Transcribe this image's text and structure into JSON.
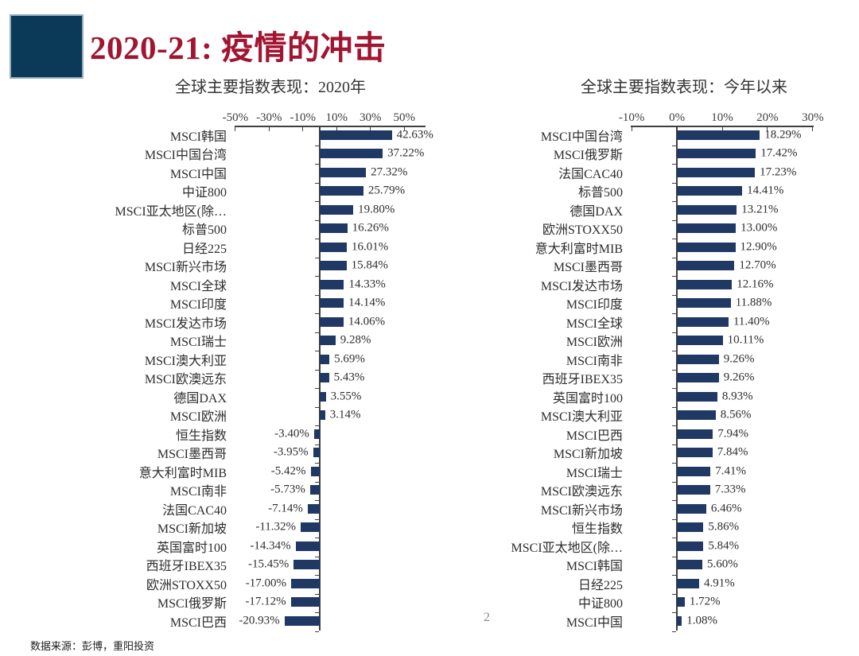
{
  "slide": {
    "title": "2020-21: 疫情的冲击",
    "page_number": "2",
    "source_note": "数据来源：彭博，重阳投资"
  },
  "colors": {
    "bar": "#1F3864",
    "title_red": "#A11531",
    "accent_square": "#0A3A57",
    "axis": "#3F3F3F"
  },
  "chart_data": [
    {
      "type": "bar",
      "orientation": "horizontal",
      "title": "全球主要指数表现：2020年",
      "unit": "%",
      "axis": {
        "min": -50.4,
        "max": 62.6,
        "ticks": [
          -50,
          -30,
          -10,
          10,
          30,
          50
        ],
        "tick_labels": [
          "-50%",
          "-30%",
          "-10%",
          "10%",
          "30%",
          "50%"
        ],
        "grid": false
      },
      "categories": [
        "MSCI韩国",
        "MSCI中国台湾",
        "MSCI中国",
        "中证800",
        "MSCI亚太地区(除…",
        "标普500",
        "日经225",
        "MSCI新兴市场",
        "MSCI全球",
        "MSCI印度",
        "MSCI发达市场",
        "MSCI瑞士",
        "MSCI澳大利亚",
        "MSCI欧澳远东",
        "德国DAX",
        "MSCI欧洲",
        "恒生指数",
        "MSCI墨西哥",
        "意大利富时MIB",
        "MSCI南非",
        "法国CAC40",
        "MSCI新加坡",
        "英国富时100",
        "西班牙IBEX35",
        "欧洲STOXX50",
        "MSCI俄罗斯",
        "MSCI巴西"
      ],
      "values": [
        42.63,
        37.22,
        27.32,
        25.79,
        19.8,
        16.26,
        16.01,
        15.84,
        14.33,
        14.14,
        14.06,
        9.28,
        5.69,
        5.43,
        3.55,
        3.14,
        -3.4,
        -3.95,
        -5.42,
        -5.73,
        -7.14,
        -11.32,
        -14.34,
        -15.45,
        -17.0,
        -17.12,
        -20.93
      ],
      "value_labels": [
        "42.63%",
        "37.22%",
        "27.32%",
        "25.79%",
        "19.80%",
        "16.26%",
        "16.01%",
        "15.84%",
        "14.33%",
        "14.14%",
        "14.06%",
        "9.28%",
        "5.69%",
        "5.43%",
        "3.55%",
        "3.14%",
        "-3.40%",
        "-3.95%",
        "-5.42%",
        "-5.73%",
        "-7.14%",
        "-11.32%",
        "-14.34%",
        "-15.45%",
        "-17.00%",
        "-17.12%",
        "-20.93%"
      ]
    },
    {
      "type": "bar",
      "orientation": "horizontal",
      "title": "全球主要指数表现：今年以来",
      "unit": "%",
      "axis": {
        "min": -10.2,
        "max": 30.2,
        "ticks": [
          -10,
          0,
          10,
          20,
          30
        ],
        "tick_labels": [
          "-10%",
          "0%",
          "10%",
          "20%",
          "30%"
        ],
        "grid": false
      },
      "categories": [
        "MSCI中国台湾",
        "MSCI俄罗斯",
        "法国CAC40",
        "标普500",
        "德国DAX",
        "欧洲STOXX50",
        "意大利富时MIB",
        "MSCI墨西哥",
        "MSCI发达市场",
        "MSCI印度",
        "MSCI全球",
        "MSCI欧洲",
        "MSCI南非",
        "西班牙IBEX35",
        "英国富时100",
        "MSCI澳大利亚",
        "MSCI巴西",
        "MSCI新加坡",
        "MSCI瑞士",
        "MSCI欧澳远东",
        "MSCI新兴市场",
        "恒生指数",
        "MSCI亚太地区(除…",
        "MSCI韩国",
        "日经225",
        "中证800",
        "MSCI中国"
      ],
      "values": [
        18.29,
        17.42,
        17.23,
        14.41,
        13.21,
        13.0,
        12.9,
        12.7,
        12.16,
        11.88,
        11.4,
        10.11,
        9.26,
        9.26,
        8.93,
        8.56,
        7.94,
        7.84,
        7.41,
        7.33,
        6.46,
        5.86,
        5.84,
        5.6,
        4.91,
        1.72,
        1.08
      ],
      "value_labels": [
        "18.29%",
        "17.42%",
        "17.23%",
        "14.41%",
        "13.21%",
        "13.00%",
        "12.90%",
        "12.70%",
        "12.16%",
        "11.88%",
        "11.40%",
        "10.11%",
        "9.26%",
        "9.26%",
        "8.93%",
        "8.56%",
        "7.94%",
        "7.84%",
        "7.41%",
        "7.33%",
        "6.46%",
        "5.86%",
        "5.84%",
        "5.60%",
        "4.91%",
        "1.72%",
        "1.08%"
      ]
    }
  ]
}
